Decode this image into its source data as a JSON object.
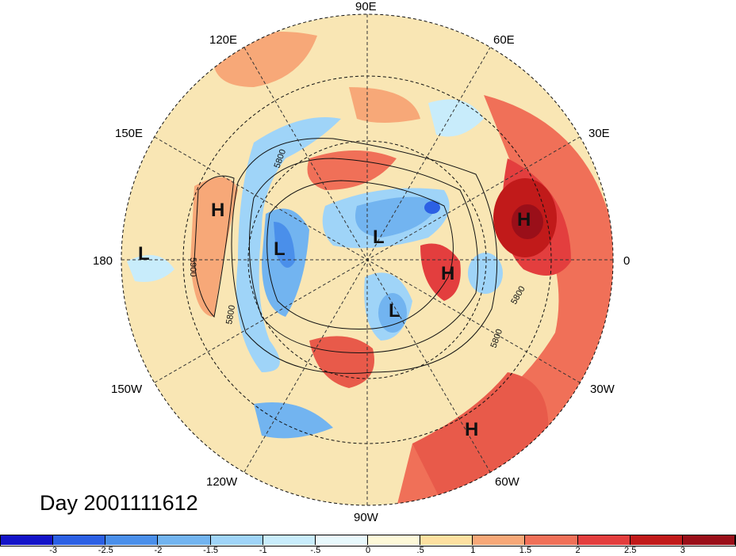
{
  "title": "Day 2001111612",
  "longitude_labels": {
    "lon_90E": "90E",
    "lon_120E": "120E",
    "lon_60E": "60E",
    "lon_150E": "150E",
    "lon_30E": "30E",
    "lon_180": "180",
    "lon_0": "0",
    "lon_150W": "150W",
    "lon_30W": "30W",
    "lon_120W": "120W",
    "lon_60W": "60W",
    "lon_90W": "90W"
  },
  "contour_labels": {
    "c1": "5800",
    "c2": "5900",
    "c3": "5800",
    "c4": "5800",
    "c5": "5800"
  },
  "pressure_centers": {
    "h_pacific": "H",
    "l_dateline": "L",
    "l_aleutian": "L",
    "l_arctic": "L",
    "l_hudson": "L",
    "h_europe": "H",
    "h_greenland": "H",
    "h_atlantic": "H"
  },
  "colorbar": {
    "ticks": [
      "-3",
      "-2.5",
      "-2",
      "-1.5",
      "-1",
      "-.5",
      "0",
      ".5",
      "1",
      "1.5",
      "2",
      "2.5",
      "3"
    ],
    "colors": [
      "#1313c8",
      "#2c60e4",
      "#4a8fea",
      "#72b4f0",
      "#9fd4f8",
      "#c8ecfb",
      "#e8f8fc",
      "#fdf8d8",
      "#fde0a0",
      "#f7a878",
      "#f07058",
      "#e33e3e",
      "#c11a1a",
      "#9a0f19"
    ]
  }
}
